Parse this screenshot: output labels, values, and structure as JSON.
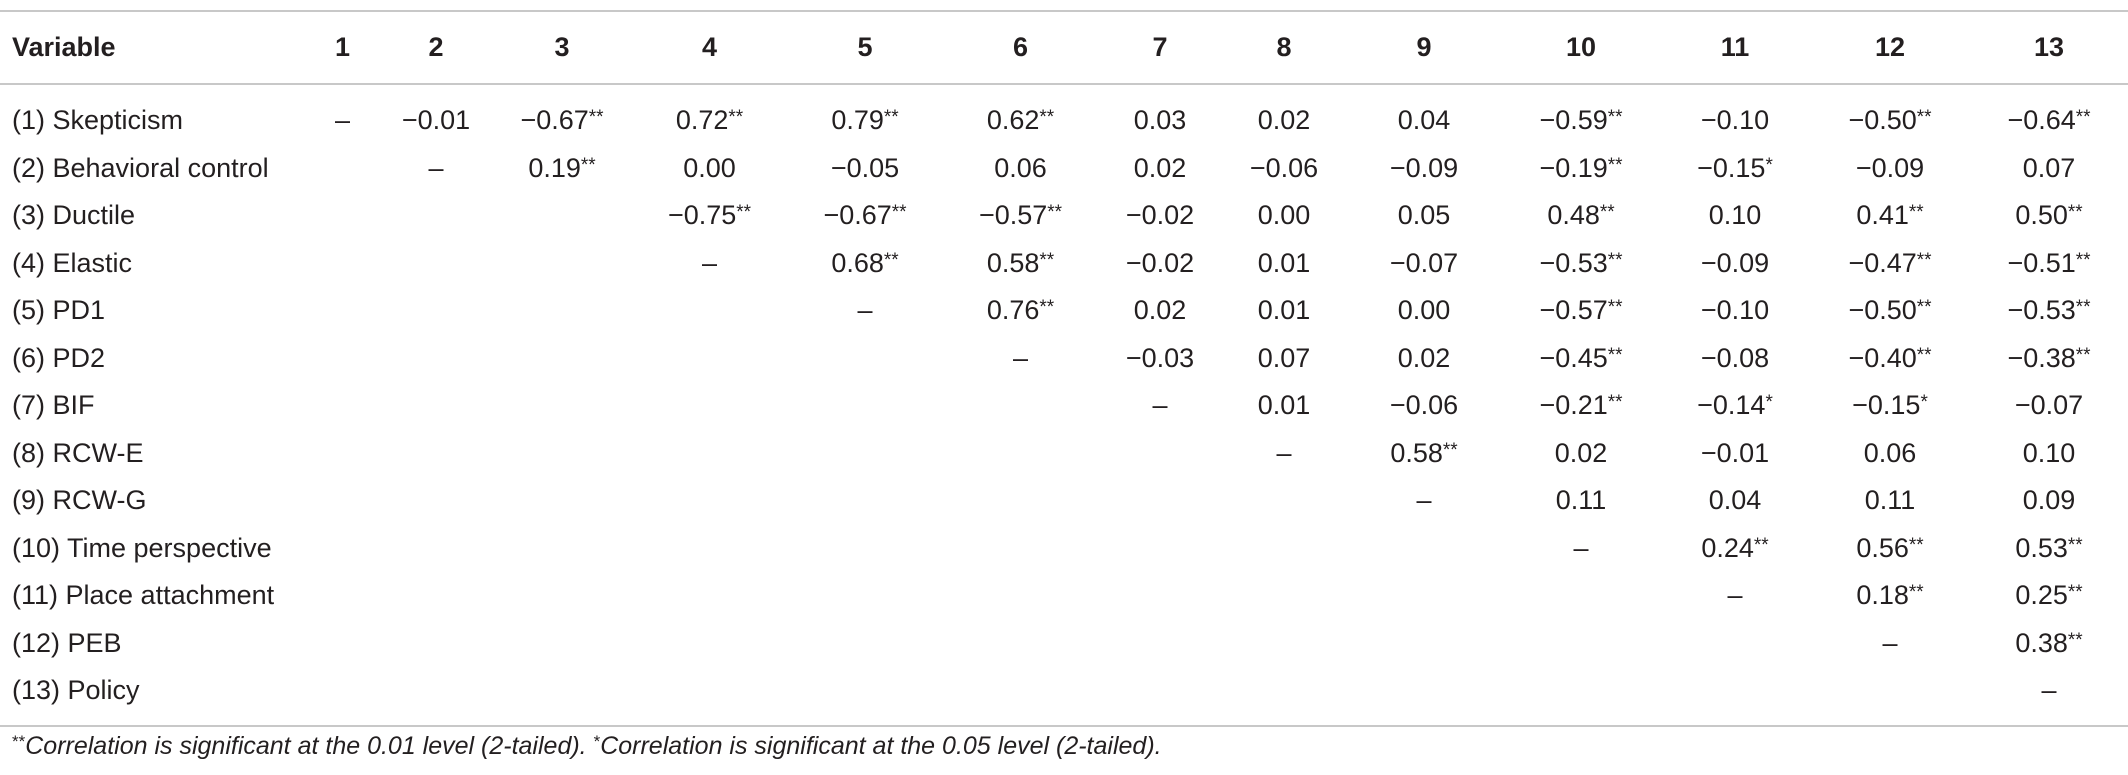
{
  "table": {
    "header": [
      "Variable",
      "1",
      "2",
      "3",
      "4",
      "5",
      "6",
      "7",
      "8",
      "9",
      "10",
      "11",
      "12",
      "13"
    ],
    "rows": [
      {
        "label": "(1) Skepticism",
        "cells": [
          {
            "v": "–",
            "s": ""
          },
          {
            "v": "−0.01",
            "s": ""
          },
          {
            "v": "−0.67",
            "s": "**"
          },
          {
            "v": "0.72",
            "s": "**"
          },
          {
            "v": "0.79",
            "s": "**"
          },
          {
            "v": "0.62",
            "s": "**"
          },
          {
            "v": "0.03",
            "s": ""
          },
          {
            "v": "0.02",
            "s": ""
          },
          {
            "v": "0.04",
            "s": ""
          },
          {
            "v": "−0.59",
            "s": "**"
          },
          {
            "v": "−0.10",
            "s": ""
          },
          {
            "v": "−0.50",
            "s": "**"
          },
          {
            "v": "−0.64",
            "s": "**"
          }
        ]
      },
      {
        "label": "(2) Behavioral control",
        "cells": [
          {
            "v": "",
            "s": ""
          },
          {
            "v": "–",
            "s": ""
          },
          {
            "v": "0.19",
            "s": "**"
          },
          {
            "v": "0.00",
            "s": ""
          },
          {
            "v": "−0.05",
            "s": ""
          },
          {
            "v": "0.06",
            "s": ""
          },
          {
            "v": "0.02",
            "s": ""
          },
          {
            "v": "−0.06",
            "s": ""
          },
          {
            "v": "−0.09",
            "s": ""
          },
          {
            "v": "−0.19",
            "s": "**"
          },
          {
            "v": "−0.15",
            "s": "*"
          },
          {
            "v": "−0.09",
            "s": ""
          },
          {
            "v": "0.07",
            "s": ""
          }
        ]
      },
      {
        "label": "(3) Ductile",
        "cells": [
          {
            "v": "",
            "s": ""
          },
          {
            "v": "",
            "s": ""
          },
          {
            "v": "",
            "s": ""
          },
          {
            "v": "−0.75",
            "s": "**"
          },
          {
            "v": "−0.67",
            "s": "**"
          },
          {
            "v": "−0.57",
            "s": "**"
          },
          {
            "v": "−0.02",
            "s": ""
          },
          {
            "v": "0.00",
            "s": ""
          },
          {
            "v": "0.05",
            "s": ""
          },
          {
            "v": "0.48",
            "s": "**"
          },
          {
            "v": "0.10",
            "s": ""
          },
          {
            "v": "0.41",
            "s": "**"
          },
          {
            "v": "0.50",
            "s": "**"
          }
        ]
      },
      {
        "label": "(4) Elastic",
        "cells": [
          {
            "v": "",
            "s": ""
          },
          {
            "v": "",
            "s": ""
          },
          {
            "v": "",
            "s": ""
          },
          {
            "v": "–",
            "s": ""
          },
          {
            "v": "0.68",
            "s": "**"
          },
          {
            "v": "0.58",
            "s": "**"
          },
          {
            "v": "−0.02",
            "s": ""
          },
          {
            "v": "0.01",
            "s": ""
          },
          {
            "v": "−0.07",
            "s": ""
          },
          {
            "v": "−0.53",
            "s": "**"
          },
          {
            "v": "−0.09",
            "s": ""
          },
          {
            "v": "−0.47",
            "s": "**"
          },
          {
            "v": "−0.51",
            "s": "**"
          }
        ]
      },
      {
        "label": "(5) PD1",
        "cells": [
          {
            "v": "",
            "s": ""
          },
          {
            "v": "",
            "s": ""
          },
          {
            "v": "",
            "s": ""
          },
          {
            "v": "",
            "s": ""
          },
          {
            "v": "–",
            "s": ""
          },
          {
            "v": "0.76",
            "s": "**"
          },
          {
            "v": "0.02",
            "s": ""
          },
          {
            "v": "0.01",
            "s": ""
          },
          {
            "v": "0.00",
            "s": ""
          },
          {
            "v": "−0.57",
            "s": "**"
          },
          {
            "v": "−0.10",
            "s": ""
          },
          {
            "v": "−0.50",
            "s": "**"
          },
          {
            "v": "−0.53",
            "s": "**"
          }
        ]
      },
      {
        "label": "(6) PD2",
        "cells": [
          {
            "v": "",
            "s": ""
          },
          {
            "v": "",
            "s": ""
          },
          {
            "v": "",
            "s": ""
          },
          {
            "v": "",
            "s": ""
          },
          {
            "v": "",
            "s": ""
          },
          {
            "v": "–",
            "s": ""
          },
          {
            "v": "−0.03",
            "s": ""
          },
          {
            "v": "0.07",
            "s": ""
          },
          {
            "v": "0.02",
            "s": ""
          },
          {
            "v": "−0.45",
            "s": "**"
          },
          {
            "v": "−0.08",
            "s": ""
          },
          {
            "v": "−0.40",
            "s": "**"
          },
          {
            "v": "−0.38",
            "s": "**"
          }
        ]
      },
      {
        "label": "(7) BIF",
        "cells": [
          {
            "v": "",
            "s": ""
          },
          {
            "v": "",
            "s": ""
          },
          {
            "v": "",
            "s": ""
          },
          {
            "v": "",
            "s": ""
          },
          {
            "v": "",
            "s": ""
          },
          {
            "v": "",
            "s": ""
          },
          {
            "v": "–",
            "s": ""
          },
          {
            "v": "0.01",
            "s": ""
          },
          {
            "v": "−0.06",
            "s": ""
          },
          {
            "v": "−0.21",
            "s": "**"
          },
          {
            "v": "−0.14",
            "s": "*"
          },
          {
            "v": "−0.15",
            "s": "*"
          },
          {
            "v": "−0.07",
            "s": ""
          }
        ]
      },
      {
        "label": "(8) RCW-E",
        "cells": [
          {
            "v": "",
            "s": ""
          },
          {
            "v": "",
            "s": ""
          },
          {
            "v": "",
            "s": ""
          },
          {
            "v": "",
            "s": ""
          },
          {
            "v": "",
            "s": ""
          },
          {
            "v": "",
            "s": ""
          },
          {
            "v": "",
            "s": ""
          },
          {
            "v": "–",
            "s": ""
          },
          {
            "v": "0.58",
            "s": "**"
          },
          {
            "v": "0.02",
            "s": ""
          },
          {
            "v": "−0.01",
            "s": ""
          },
          {
            "v": "0.06",
            "s": ""
          },
          {
            "v": "0.10",
            "s": ""
          }
        ]
      },
      {
        "label": "(9) RCW-G",
        "cells": [
          {
            "v": "",
            "s": ""
          },
          {
            "v": "",
            "s": ""
          },
          {
            "v": "",
            "s": ""
          },
          {
            "v": "",
            "s": ""
          },
          {
            "v": "",
            "s": ""
          },
          {
            "v": "",
            "s": ""
          },
          {
            "v": "",
            "s": ""
          },
          {
            "v": "",
            "s": ""
          },
          {
            "v": "–",
            "s": ""
          },
          {
            "v": "0.11",
            "s": ""
          },
          {
            "v": "0.04",
            "s": ""
          },
          {
            "v": "0.11",
            "s": ""
          },
          {
            "v": "0.09",
            "s": ""
          }
        ]
      },
      {
        "label": "(10) Time perspective",
        "cells": [
          {
            "v": "",
            "s": ""
          },
          {
            "v": "",
            "s": ""
          },
          {
            "v": "",
            "s": ""
          },
          {
            "v": "",
            "s": ""
          },
          {
            "v": "",
            "s": ""
          },
          {
            "v": "",
            "s": ""
          },
          {
            "v": "",
            "s": ""
          },
          {
            "v": "",
            "s": ""
          },
          {
            "v": "",
            "s": ""
          },
          {
            "v": "–",
            "s": ""
          },
          {
            "v": "0.24",
            "s": "**"
          },
          {
            "v": "0.56",
            "s": "**"
          },
          {
            "v": "0.53",
            "s": "**"
          }
        ]
      },
      {
        "label": "(11) Place attachment",
        "cells": [
          {
            "v": "",
            "s": ""
          },
          {
            "v": "",
            "s": ""
          },
          {
            "v": "",
            "s": ""
          },
          {
            "v": "",
            "s": ""
          },
          {
            "v": "",
            "s": ""
          },
          {
            "v": "",
            "s": ""
          },
          {
            "v": "",
            "s": ""
          },
          {
            "v": "",
            "s": ""
          },
          {
            "v": "",
            "s": ""
          },
          {
            "v": "",
            "s": ""
          },
          {
            "v": "–",
            "s": ""
          },
          {
            "v": "0.18",
            "s": "**"
          },
          {
            "v": "0.25",
            "s": "**"
          }
        ]
      },
      {
        "label": "(12) PEB",
        "cells": [
          {
            "v": "",
            "s": ""
          },
          {
            "v": "",
            "s": ""
          },
          {
            "v": "",
            "s": ""
          },
          {
            "v": "",
            "s": ""
          },
          {
            "v": "",
            "s": ""
          },
          {
            "v": "",
            "s": ""
          },
          {
            "v": "",
            "s": ""
          },
          {
            "v": "",
            "s": ""
          },
          {
            "v": "",
            "s": ""
          },
          {
            "v": "",
            "s": ""
          },
          {
            "v": "",
            "s": ""
          },
          {
            "v": "–",
            "s": ""
          },
          {
            "v": "0.38",
            "s": "**"
          }
        ]
      },
      {
        "label": "(13) Policy",
        "cells": [
          {
            "v": "",
            "s": ""
          },
          {
            "v": "",
            "s": ""
          },
          {
            "v": "",
            "s": ""
          },
          {
            "v": "",
            "s": ""
          },
          {
            "v": "",
            "s": ""
          },
          {
            "v": "",
            "s": ""
          },
          {
            "v": "",
            "s": ""
          },
          {
            "v": "",
            "s": ""
          },
          {
            "v": "",
            "s": ""
          },
          {
            "v": "",
            "s": ""
          },
          {
            "v": "",
            "s": ""
          },
          {
            "v": "",
            "s": ""
          },
          {
            "v": "–",
            "s": ""
          }
        ]
      }
    ]
  },
  "footnote": {
    "mark1": "**",
    "text1": "Correlation is significant at the 0.01 level (2-tailed). ",
    "mark2": "*",
    "text2": "Correlation is significant at the 0.05 level (2-tailed)."
  }
}
